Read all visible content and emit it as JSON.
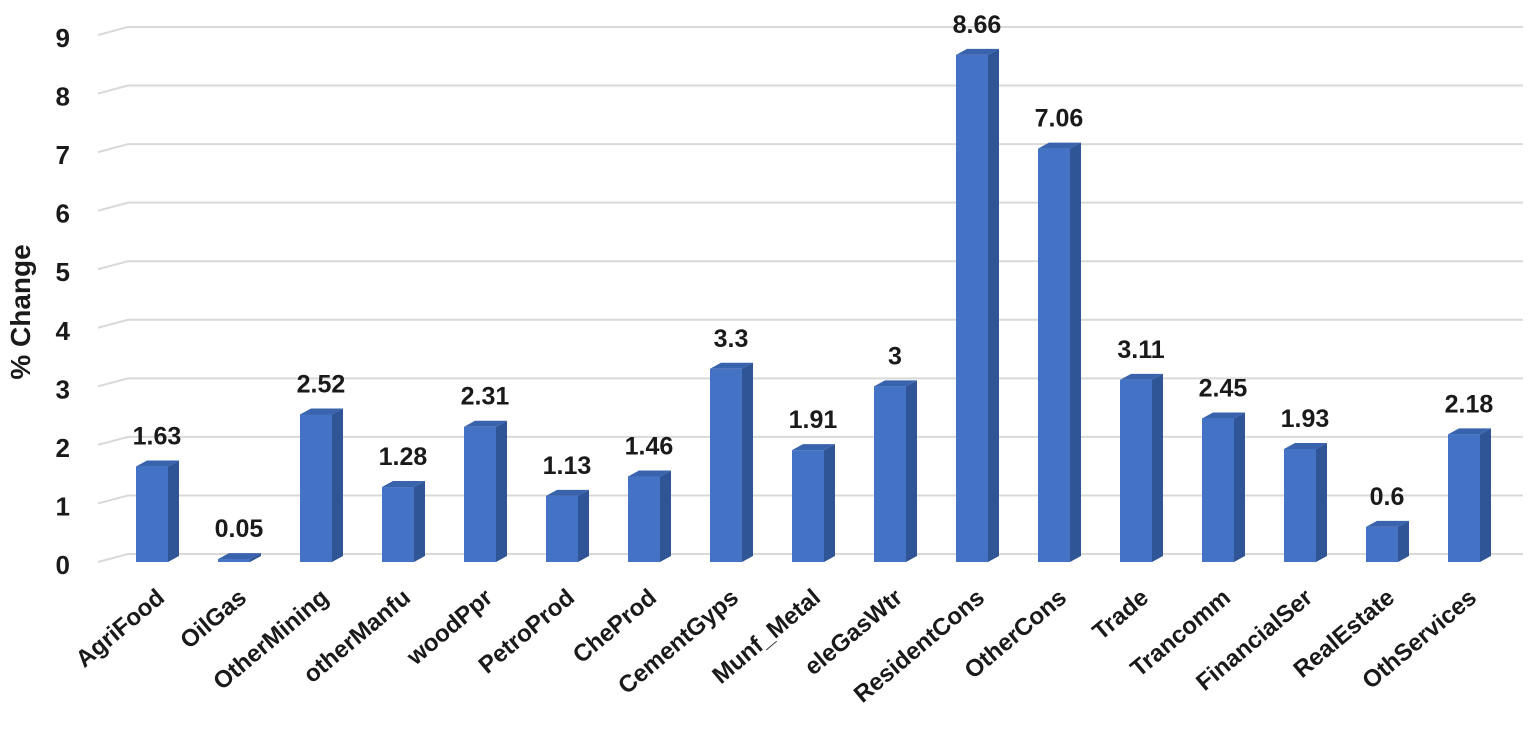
{
  "chart_data": {
    "type": "bar",
    "title": "",
    "xlabel": "",
    "ylabel": "% Change",
    "ylim": [
      0,
      9
    ],
    "yticks": [
      0,
      1,
      2,
      3,
      4,
      5,
      6,
      7,
      8,
      9
    ],
    "grid": true,
    "legend": "none",
    "style": "3d-column",
    "colors": {
      "bar_front": "#4472C4",
      "bar_side": "#2F5597",
      "bar_top": "#3A63AD",
      "grid": "#D9D9D9"
    },
    "categories": [
      "AgriFood",
      "OilGas",
      "OtherMining",
      "otherManfu",
      "woodPpr",
      "PetroProd",
      "CheProd",
      "CementGyps",
      "Munf_Metal",
      "eleGasWtr",
      "ResidentCons",
      "OtherCons",
      "Trade",
      "Trancomm",
      "FinancialSer",
      "RealEstate",
      "OthServices"
    ],
    "values": [
      1.63,
      0.05,
      2.52,
      1.28,
      2.31,
      1.13,
      1.46,
      3.3,
      1.91,
      3,
      8.66,
      7.06,
      3.11,
      2.45,
      1.93,
      0.6,
      2.18
    ],
    "value_labels": [
      "1.63",
      "0.05",
      "2.52",
      "1.28",
      "2.31",
      "1.13",
      "1.46",
      "3.3",
      "1.91",
      "3",
      "8.66",
      "7.06",
      "3.11",
      "2.45",
      "1.93",
      "0.6",
      "2.18"
    ]
  }
}
